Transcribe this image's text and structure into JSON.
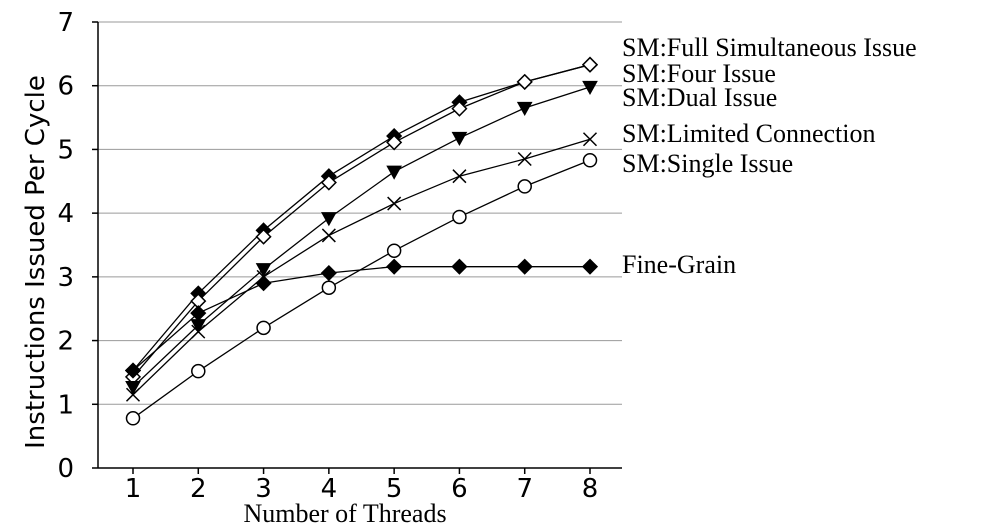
{
  "chart_data": {
    "type": "line",
    "title": "",
    "xlabel": "Number of Threads",
    "ylabel": "Instructions Issued Per Cycle",
    "x": [
      1,
      2,
      3,
      4,
      5,
      6,
      7,
      8
    ],
    "xlim": [
      1,
      8
    ],
    "ylim": [
      0,
      7
    ],
    "yticks": [
      0,
      1,
      2,
      3,
      4,
      5,
      6,
      7
    ],
    "grid": "horizontal",
    "legend": "right, series labels beside line ends",
    "series": [
      {
        "name": "SM:Full Simultaneous Issue",
        "marker": "filled-diamond",
        "values": [
          1.53,
          2.74,
          3.73,
          4.58,
          5.21,
          5.74,
          6.06,
          6.33
        ]
      },
      {
        "name": "SM:Four Issue",
        "marker": "open-diamond",
        "values": [
          1.43,
          2.62,
          3.63,
          4.48,
          5.11,
          5.64,
          6.06,
          6.33
        ]
      },
      {
        "name": "SM:Dual Issue",
        "marker": "filled-triangle-down",
        "values": [
          1.27,
          2.24,
          3.12,
          3.92,
          4.65,
          5.18,
          5.65,
          5.98
        ]
      },
      {
        "name": "SM:Limited Connection",
        "marker": "x",
        "values": [
          1.15,
          2.14,
          3.0,
          3.65,
          4.15,
          4.58,
          4.85,
          5.16
        ]
      },
      {
        "name": "SM:Single Issue",
        "marker": "open-circle",
        "values": [
          0.78,
          1.52,
          2.2,
          2.83,
          3.41,
          3.94,
          4.42,
          4.83
        ]
      },
      {
        "name": "Fine-Grain",
        "marker": "filled-diamond",
        "values": [
          1.53,
          2.43,
          2.9,
          3.06,
          3.16,
          3.16,
          3.16,
          3.16
        ]
      }
    ]
  }
}
